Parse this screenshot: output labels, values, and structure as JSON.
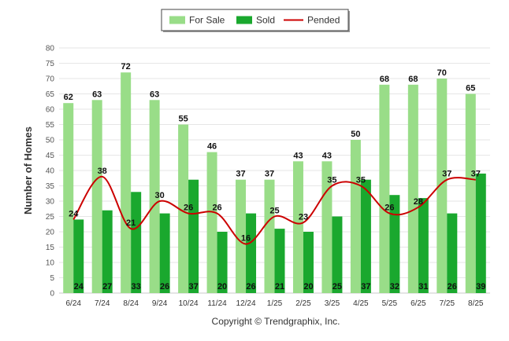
{
  "chart_data": {
    "type": "bar",
    "categories": [
      "6/24",
      "7/24",
      "8/24",
      "9/24",
      "10/24",
      "11/24",
      "12/24",
      "1/25",
      "2/25",
      "3/25",
      "4/25",
      "5/25",
      "6/25",
      "7/25",
      "8/25"
    ],
    "series": [
      {
        "name": "For Sale",
        "type": "bar",
        "color": "#99dd88",
        "values": [
          62,
          63,
          72,
          63,
          55,
          46,
          37,
          37,
          43,
          43,
          50,
          68,
          68,
          70,
          65
        ]
      },
      {
        "name": "Sold",
        "type": "bar",
        "color": "#1aa82e",
        "values": [
          24,
          27,
          33,
          26,
          37,
          20,
          26,
          21,
          20,
          25,
          37,
          32,
          31,
          26,
          39
        ]
      },
      {
        "name": "Pended",
        "type": "line",
        "color": "#cc0000",
        "values": [
          24,
          38,
          21,
          30,
          26,
          26,
          16,
          25,
          23,
          35,
          35,
          26,
          28,
          37,
          37
        ]
      }
    ],
    "ylabel": "Number of Homes",
    "xlabel": "",
    "ylim": [
      0,
      80
    ],
    "yticks": [
      0,
      5,
      10,
      15,
      20,
      25,
      30,
      35,
      40,
      45,
      50,
      55,
      60,
      65,
      70,
      75,
      80
    ],
    "grid": true,
    "legend_position": "top-center"
  },
  "footer": {
    "credit": "Copyright © Trendgraphix, Inc."
  }
}
